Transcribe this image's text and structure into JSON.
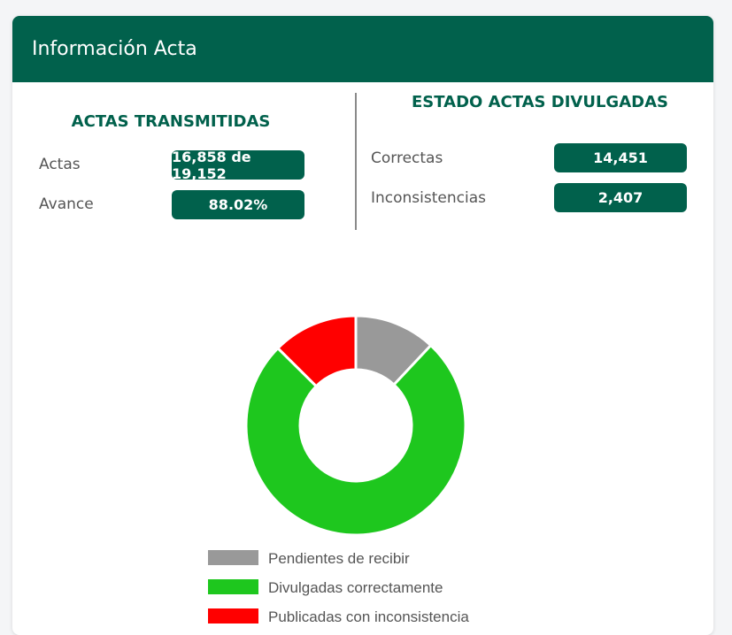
{
  "header": {
    "title": "Información Acta"
  },
  "transmitidas": {
    "title": "ACTAS TRANSMITIDAS",
    "rows": [
      {
        "label": "Actas",
        "value": "16,858 de 19,152"
      },
      {
        "label": "Avance",
        "value": "88.02%"
      }
    ]
  },
  "divulgadas": {
    "title": "ESTADO ACTAS DIVULGADAS",
    "rows": [
      {
        "label": "Correctas",
        "value": "14,451"
      },
      {
        "label": "Inconsistencias",
        "value": "2,407"
      }
    ]
  },
  "colors": {
    "brand": "#01614c"
  },
  "chart_data": {
    "type": "pie",
    "donut": true,
    "categories": [
      "Pendientes de recibir",
      "Divulgadas correctamente",
      "Publicadas con inconsistencia"
    ],
    "values": [
      2294,
      14451,
      2407
    ],
    "colors": [
      "#999999",
      "#1ec71e",
      "#ff0000"
    ],
    "legend_position": "bottom"
  }
}
